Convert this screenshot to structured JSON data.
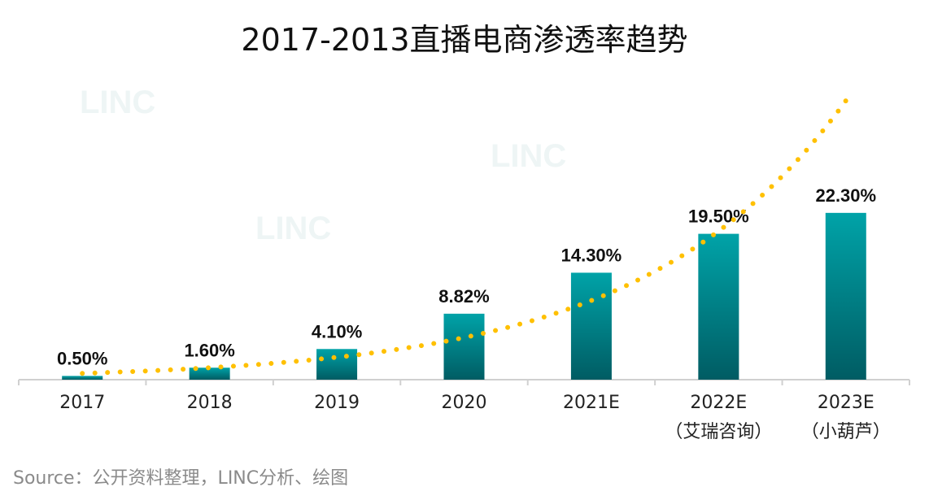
{
  "chart_data": {
    "type": "bar",
    "title": "2017-2013直播电商渗透率趋势",
    "categories": [
      "2017",
      "2018",
      "2019",
      "2020",
      "2021E",
      "2022E\n（艾瑞咨询）",
      "2023E\n（小葫芦）"
    ],
    "values": [
      0.5,
      1.6,
      4.1,
      8.82,
      14.3,
      19.5,
      22.3
    ],
    "data_labels": [
      "0.50%",
      "1.60%",
      "4.10%",
      "8.82%",
      "14.30%",
      "19.50%",
      "22.30%"
    ],
    "unit": "%",
    "trendline": {
      "type": "exponential",
      "style": "dotted",
      "color": "#FFC000"
    },
    "bar_color_top": "#00A3A8",
    "bar_color_bottom": "#005C63",
    "grid": false,
    "legend": "none",
    "xlabel": "",
    "ylabel": ""
  },
  "source": "Source：公开资料整理，LINC分析、绘图",
  "watermark": "LINC"
}
